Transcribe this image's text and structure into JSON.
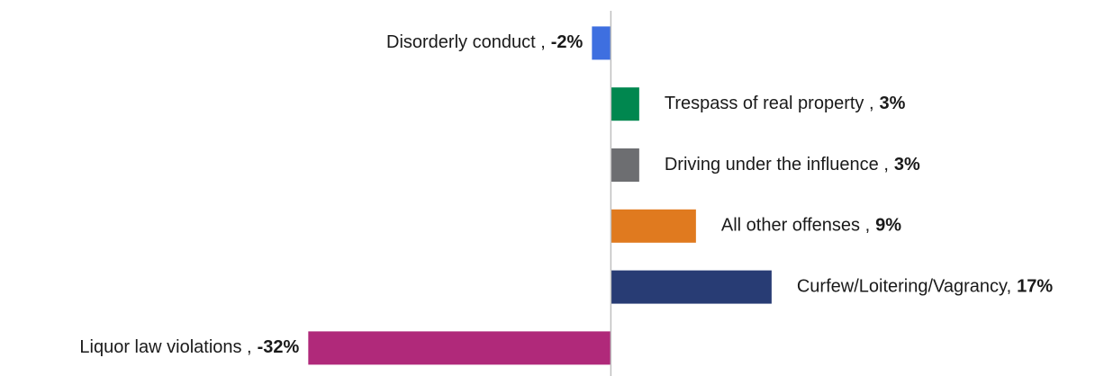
{
  "chart_data": {
    "type": "bar",
    "orientation": "horizontal",
    "categories": [
      "Disorderly conduct ,",
      "Trespass of real property ,",
      "Driving under the influence ,",
      "All other offenses ,",
      "Curfew/Loitering/Vagrancy,",
      "Liquor law violations ,"
    ],
    "values": [
      -2,
      3,
      3,
      9,
      17,
      -32
    ],
    "value_labels": [
      "-2%",
      "3%",
      "3%",
      "9%",
      "17%",
      "-32%"
    ],
    "colors": [
      "#3e6fe0",
      "#00874f",
      "#6d6e71",
      "#e07a1f",
      "#283c74",
      "#b0297a"
    ],
    "xlim": [
      -64.6,
      51.2
    ]
  }
}
